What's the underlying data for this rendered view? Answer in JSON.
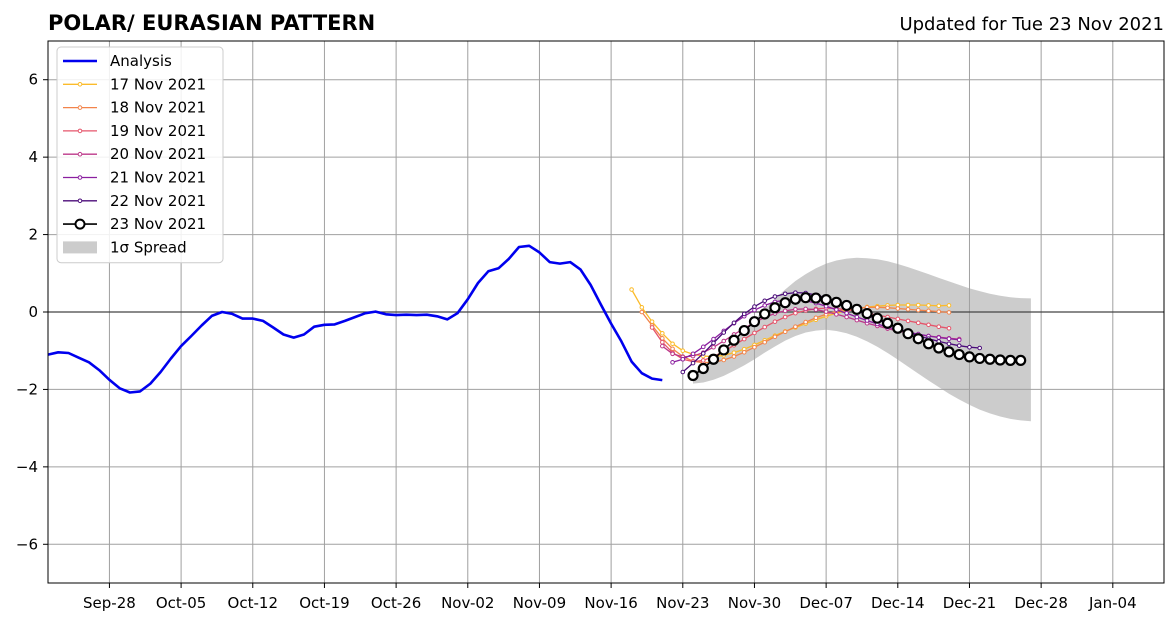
{
  "header": {
    "title": "POLAR/ EURASIAN  PATTERN",
    "updated": "Updated for Tue 23 Nov 2021"
  },
  "chart_data": {
    "type": "line",
    "title": "POLAR/ EURASIAN  PATTERN",
    "subtitle": "Updated for Tue 23 Nov 2021",
    "xlabel": "",
    "ylabel": "",
    "xlim": [
      "2021-09-22",
      "2022-01-09"
    ],
    "ylim": [
      -7,
      7
    ],
    "grid": true,
    "zero_line": true,
    "legend_position": "top-left",
    "x_ticks": [
      {
        "date": "2021-09-28",
        "label": "Sep-28"
      },
      {
        "date": "2021-10-05",
        "label": "Oct-05"
      },
      {
        "date": "2021-10-12",
        "label": "Oct-12"
      },
      {
        "date": "2021-10-19",
        "label": "Oct-19"
      },
      {
        "date": "2021-10-26",
        "label": "Oct-26"
      },
      {
        "date": "2021-11-02",
        "label": "Nov-02"
      },
      {
        "date": "2021-11-09",
        "label": "Nov-09"
      },
      {
        "date": "2021-11-16",
        "label": "Nov-16"
      },
      {
        "date": "2021-11-23",
        "label": "Nov-23"
      },
      {
        "date": "2021-11-30",
        "label": "Nov-30"
      },
      {
        "date": "2021-12-07",
        "label": "Dec-07"
      },
      {
        "date": "2021-12-14",
        "label": "Dec-14"
      },
      {
        "date": "2021-12-21",
        "label": "Dec-21"
      },
      {
        "date": "2021-12-28",
        "label": "Dec-28"
      },
      {
        "date": "2022-01-04",
        "label": "Jan-04"
      }
    ],
    "y_ticks": [
      {
        "value": 6,
        "label": "6"
      },
      {
        "value": 4,
        "label": "4"
      },
      {
        "value": 2,
        "label": "2"
      },
      {
        "value": 0,
        "label": "0"
      },
      {
        "value": -2,
        "label": "−2"
      },
      {
        "value": -4,
        "label": "−4"
      },
      {
        "value": -6,
        "label": "−6"
      }
    ],
    "analysis": {
      "name": "Analysis",
      "color": "#0000ee",
      "x_start": "2021-09-22",
      "values": [
        -1.1,
        -1.04,
        -1.06,
        -1.18,
        -1.3,
        -1.5,
        -1.75,
        -1.97,
        -2.08,
        -2.05,
        -1.85,
        -1.55,
        -1.2,
        -0.88,
        -0.62,
        -0.35,
        -0.1,
        0.0,
        -0.05,
        -0.17,
        -0.17,
        -0.23,
        -0.4,
        -0.58,
        -0.66,
        -0.58,
        -0.38,
        -0.33,
        -0.32,
        -0.23,
        -0.13,
        -0.03,
        0.01,
        -0.06,
        -0.08,
        -0.07,
        -0.08,
        -0.07,
        -0.11,
        -0.19,
        -0.03,
        0.33,
        0.75,
        1.05,
        1.13,
        1.37,
        1.68,
        1.71,
        1.54,
        1.29,
        1.25,
        1.29,
        1.1,
        0.7,
        0.19,
        -0.3,
        -0.76,
        -1.28,
        -1.58,
        -1.72,
        -1.76
      ]
    },
    "forecasts": [
      {
        "name": "17 Nov 2021",
        "color": "#fbbb2a",
        "marker": "dot",
        "x_start": "2021-11-18",
        "values": [
          0.58,
          0.12,
          -0.25,
          -0.55,
          -0.82,
          -1.0,
          -1.09,
          -1.14,
          -1.15,
          -1.12,
          -1.05,
          -0.96,
          -0.85,
          -0.73,
          -0.61,
          -0.5,
          -0.4,
          -0.3,
          -0.2,
          -0.11,
          -0.03,
          0.04,
          0.09,
          0.13,
          0.15,
          0.17,
          0.18,
          0.18,
          0.18,
          0.17,
          0.16,
          0.17
        ]
      },
      {
        "name": "18 Nov 2021",
        "color": "#f2844b",
        "marker": "dot",
        "x_start": "2021-11-19",
        "values": [
          0.0,
          -0.35,
          -0.68,
          -0.95,
          -1.15,
          -1.27,
          -1.31,
          -1.3,
          -1.24,
          -1.15,
          -1.04,
          -0.91,
          -0.78,
          -0.64,
          -0.51,
          -0.38,
          -0.26,
          -0.15,
          -0.06,
          0.02,
          0.07,
          0.1,
          0.12,
          0.12,
          0.11,
          0.09,
          0.07,
          0.05,
          0.03,
          0.01,
          -0.01
        ]
      },
      {
        "name": "19 Nov 2021",
        "color": "#e5556b",
        "marker": "dot",
        "x_start": "2021-11-20",
        "values": [
          -0.4,
          -0.78,
          -1.05,
          -1.22,
          -1.28,
          -1.25,
          -1.15,
          -1.02,
          -0.86,
          -0.7,
          -0.54,
          -0.39,
          -0.25,
          -0.13,
          -0.03,
          0.04,
          0.08,
          0.1,
          0.09,
          0.06,
          0.02,
          -0.03,
          -0.08,
          -0.13,
          -0.18,
          -0.23,
          -0.28,
          -0.33,
          -0.38,
          -0.42
        ]
      },
      {
        "name": "20 Nov 2021",
        "color": "#bc3789",
        "marker": "dot",
        "x_start": "2021-11-21",
        "values": [
          -0.88,
          -1.08,
          -1.16,
          -1.14,
          -1.05,
          -0.91,
          -0.75,
          -0.58,
          -0.42,
          -0.27,
          -0.14,
          -0.04,
          0.03,
          0.07,
          0.08,
          0.06,
          0.01,
          -0.06,
          -0.13,
          -0.21,
          -0.29,
          -0.36,
          -0.43,
          -0.49,
          -0.54,
          -0.58,
          -0.62,
          -0.65,
          -0.68,
          -0.7
        ]
      },
      {
        "name": "21 Nov 2021",
        "color": "#8b1fa0",
        "marker": "dot",
        "x_start": "2021-11-22",
        "values": [
          -1.3,
          -1.22,
          -1.08,
          -0.9,
          -0.7,
          -0.49,
          -0.29,
          -0.11,
          0.05,
          0.17,
          0.26,
          0.31,
          0.32,
          0.29,
          0.23,
          0.15,
          0.06,
          -0.03,
          -0.13,
          -0.22,
          -0.31,
          -0.39,
          -0.46,
          -0.52,
          -0.57,
          -0.62,
          -0.66,
          -0.69,
          -0.72
        ]
      },
      {
        "name": "22 Nov 2021",
        "color": "#4b0c7a",
        "marker": "dot",
        "x_start": "2021-11-23",
        "values": [
          -1.55,
          -1.32,
          -1.07,
          -0.8,
          -0.53,
          -0.28,
          -0.05,
          0.14,
          0.29,
          0.4,
          0.47,
          0.5,
          0.49,
          0.44,
          0.37,
          0.27,
          0.16,
          0.04,
          -0.08,
          -0.2,
          -0.31,
          -0.42,
          -0.52,
          -0.61,
          -0.69,
          -0.76,
          -0.82,
          -0.87,
          -0.91,
          -0.93
        ]
      },
      {
        "name": "23 Nov 2021",
        "color": "#000000",
        "marker": "circle",
        "x_start": "2021-11-24",
        "values": [
          -1.64,
          -1.46,
          -1.22,
          -0.98,
          -0.73,
          -0.48,
          -0.25,
          -0.05,
          0.11,
          0.24,
          0.33,
          0.37,
          0.36,
          0.32,
          0.25,
          0.17,
          0.07,
          -0.04,
          -0.16,
          -0.29,
          -0.42,
          -0.56,
          -0.69,
          -0.82,
          -0.93,
          -1.03,
          -1.1,
          -1.16,
          -1.2,
          -1.22,
          -1.24,
          -1.25,
          -1.25
        ]
      }
    ],
    "spread": {
      "name": "1σ Spread",
      "color": "#cccccc",
      "x_start": "2021-11-24",
      "upper": [
        -1.55,
        -1.4,
        -1.22,
        -1.0,
        -0.75,
        -0.48,
        -0.2,
        0.08,
        0.34,
        0.58,
        0.8,
        0.98,
        1.13,
        1.25,
        1.33,
        1.38,
        1.4,
        1.39,
        1.36,
        1.31,
        1.24,
        1.16,
        1.07,
        0.98,
        0.88,
        0.79,
        0.7,
        0.61,
        0.54,
        0.47,
        0.42,
        0.38,
        0.36,
        0.35
      ],
      "lower": [
        -1.85,
        -1.82,
        -1.75,
        -1.65,
        -1.52,
        -1.38,
        -1.22,
        -1.05,
        -0.89,
        -0.74,
        -0.62,
        -0.53,
        -0.48,
        -0.46,
        -0.49,
        -0.55,
        -0.64,
        -0.76,
        -0.9,
        -1.06,
        -1.23,
        -1.41,
        -1.59,
        -1.77,
        -1.94,
        -2.11,
        -2.26,
        -2.4,
        -2.52,
        -2.62,
        -2.7,
        -2.76,
        -2.8,
        -2.82
      ]
    }
  }
}
